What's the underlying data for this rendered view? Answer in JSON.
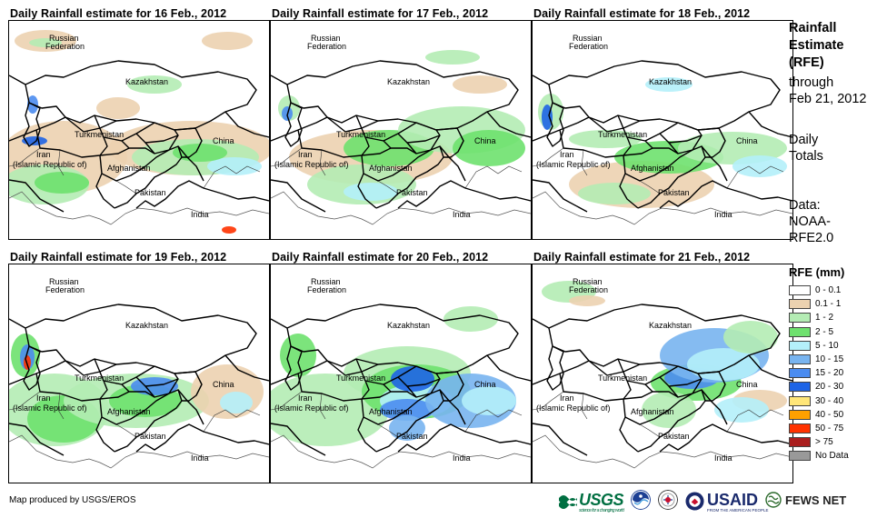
{
  "panels": [
    {
      "title": "Daily Rainfall estimate for 16 Feb., 2012"
    },
    {
      "title": "Daily Rainfall estimate for 17 Feb., 2012"
    },
    {
      "title": "Daily Rainfall estimate for 18 Feb., 2012"
    },
    {
      "title": "Daily Rainfall estimate for 19 Feb., 2012"
    },
    {
      "title": "Daily Rainfall estimate for 20 Feb., 2012"
    },
    {
      "title": "Daily Rainfall estimate for 21 Feb., 2012"
    }
  ],
  "map_labels": {
    "russia_1": "Russian",
    "russia_2": "Federation",
    "kazakhstan": "Kazakhstan",
    "turkmenistan": "Turkmenistan",
    "iran_1": "Iran",
    "iran_2": "(Islamic Republic of)",
    "afghanistan": "Afghanistan",
    "pakistan": "Pakistan",
    "china": "China",
    "india": "India"
  },
  "sidebar": {
    "title_lines": [
      "Rainfall",
      "Estimate",
      "(RFE)"
    ],
    "through": "through",
    "date": "Feb 21, 2012",
    "daily": "Daily",
    "totals": "Totals",
    "data_label": "Data:",
    "source_1": "NOAA-",
    "source_2": "RFE2.0"
  },
  "legend": {
    "title": "RFE (mm)",
    "items": [
      {
        "label": "0 - 0.1",
        "color": "#ffffff"
      },
      {
        "label": "0.1 - 1",
        "color": "#ecd2b0"
      },
      {
        "label": "1 - 2",
        "color": "#b4ecb4"
      },
      {
        "label": "2 - 5",
        "color": "#6ee16e"
      },
      {
        "label": "5 - 10",
        "color": "#b4f0fa"
      },
      {
        "label": "10 - 15",
        "color": "#78b4f0"
      },
      {
        "label": "15 - 20",
        "color": "#4b8cf0"
      },
      {
        "label": "20 - 30",
        "color": "#1e64e6"
      },
      {
        "label": "30 - 40",
        "color": "#ffe678"
      },
      {
        "label": "40 - 50",
        "color": "#ffa000"
      },
      {
        "label": "50 - 75",
        "color": "#ff3200"
      },
      {
        "label": "> 75",
        "color": "#aa1e1e"
      },
      {
        "label": "No Data",
        "color": "#999999"
      }
    ]
  },
  "footer": {
    "credit": "Map produced by USGS/EROS",
    "usgs": "USGS",
    "usgs_tagline": "science for a changing world",
    "usaid": "USAID",
    "usaid_tagline": "FROM THE AMERICAN PEOPLE",
    "fews": "FEWS NET"
  }
}
